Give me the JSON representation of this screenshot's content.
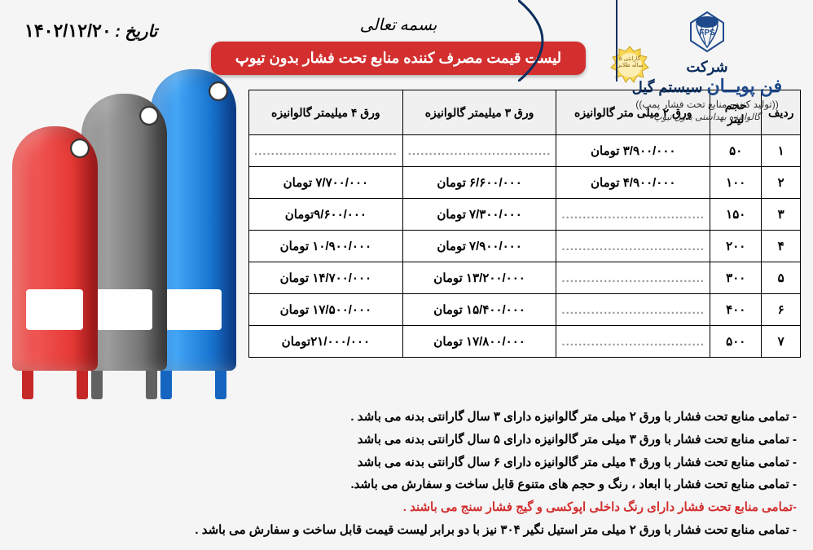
{
  "company": {
    "pre": "شرکت",
    "main": "فن پویــان",
    "suffix": "سیستم گیل",
    "sub1": "((تولید کننده منابع تحت فشار پمپ))",
    "sub2": "گالوانیزه بهداشتی بدون تیوپ",
    "badge": "گارانتی ۵ ساله طلایی"
  },
  "header": {
    "bismillah": "بسمه تعالی",
    "title": "لیست قیمت مصرف کننده  منابع تحت فشار بدون تیوپ",
    "date_label": "تاریخ :",
    "date_value": "۱۴۰۲/۱۲/۲۰"
  },
  "table": {
    "headers": {
      "idx": "ردیف",
      "vol": "حجم لیتر",
      "c2": "ورق ۲ میلی متر گالوانیزه",
      "c3": "ورق ۳ میلیمتر  گالوانیزه",
      "c4": "ورق ۴ میلیمتر گالوانیزه"
    },
    "rows": [
      {
        "idx": "۱",
        "vol": "۵۰",
        "c2": "۳/۹۰۰/۰۰۰ تومان",
        "c3": "..................................",
        "c4": ".................................."
      },
      {
        "idx": "۲",
        "vol": "۱۰۰",
        "c2": "۴/۹۰۰/۰۰۰ تومان",
        "c3": "۶/۶۰۰/۰۰۰ تومان",
        "c4": "۷/۷۰۰/۰۰۰ تومان"
      },
      {
        "idx": "۳",
        "vol": "۱۵۰",
        "c2": "..................................",
        "c3": "۷/۳۰۰/۰۰۰ تومان",
        "c4": "۹/۶۰۰/۰۰۰تومان"
      },
      {
        "idx": "۴",
        "vol": "۲۰۰",
        "c2": "..................................",
        "c3": "۷/۹۰۰/۰۰۰ تومان",
        "c4": "۱۰/۹۰۰/۰۰۰ تومان"
      },
      {
        "idx": "۵",
        "vol": "۳۰۰",
        "c2": "..................................",
        "c3": "۱۳/۲۰۰/۰۰۰ تومان",
        "c4": "۱۴/۷۰۰/۰۰۰ تومان"
      },
      {
        "idx": "۶",
        "vol": "۴۰۰",
        "c2": "..................................",
        "c3": "۱۵/۴۰۰/۰۰۰ تومان",
        "c4": "۱۷/۵۰۰/۰۰۰ تومان"
      },
      {
        "idx": "۷",
        "vol": "۵۰۰",
        "c2": "..................................",
        "c3": "۱۷/۸۰۰/۰۰۰ تومان",
        "c4": "۲۱/۰۰۰/۰۰۰تومان"
      }
    ]
  },
  "notes": [
    {
      "text": "- تمامی منابع تحت فشار با ورق ۲ میلی متر گالوانیزه دارای ۳ سال گارانتی بدنه می باشد .",
      "red": false
    },
    {
      "text": "- تمامی منابع تحت فشار با ورق ۳ میلی متر گالوانیزه دارای ۵ سال گارانتی بدنه می باشد",
      "red": false
    },
    {
      "text": "- تمامی منابع تحت فشار با ورق ۴ میلی متر گالوانیزه دارای ۶ سال گارانتی بدنه می باشد",
      "red": false
    },
    {
      "text": "- تمامی منابع تحت فشار با ابعاد ، رنگ و حجم های متنوع قابل ساخت و سفارش می باشد.",
      "red": false
    },
    {
      "text": "-تمامی منابع تحت فشار دارای رنگ داخلی اپوکسی و گیج فشار سنج می باشند .",
      "red": true
    },
    {
      "text": "- تمامی منابع تحت فشار با ورق ۲ میلی متر استیل نگیر ۳۰۴ نیز با دو برابر لیست قیمت  قابل ساخت و سفارش می باشد .",
      "red": false
    }
  ],
  "colors": {
    "brand_blue": "#1e4a8c",
    "accent_red": "#d32f2f",
    "tank_red": "#e53935",
    "tank_gray": "#757575",
    "tank_blue": "#1976d2"
  }
}
